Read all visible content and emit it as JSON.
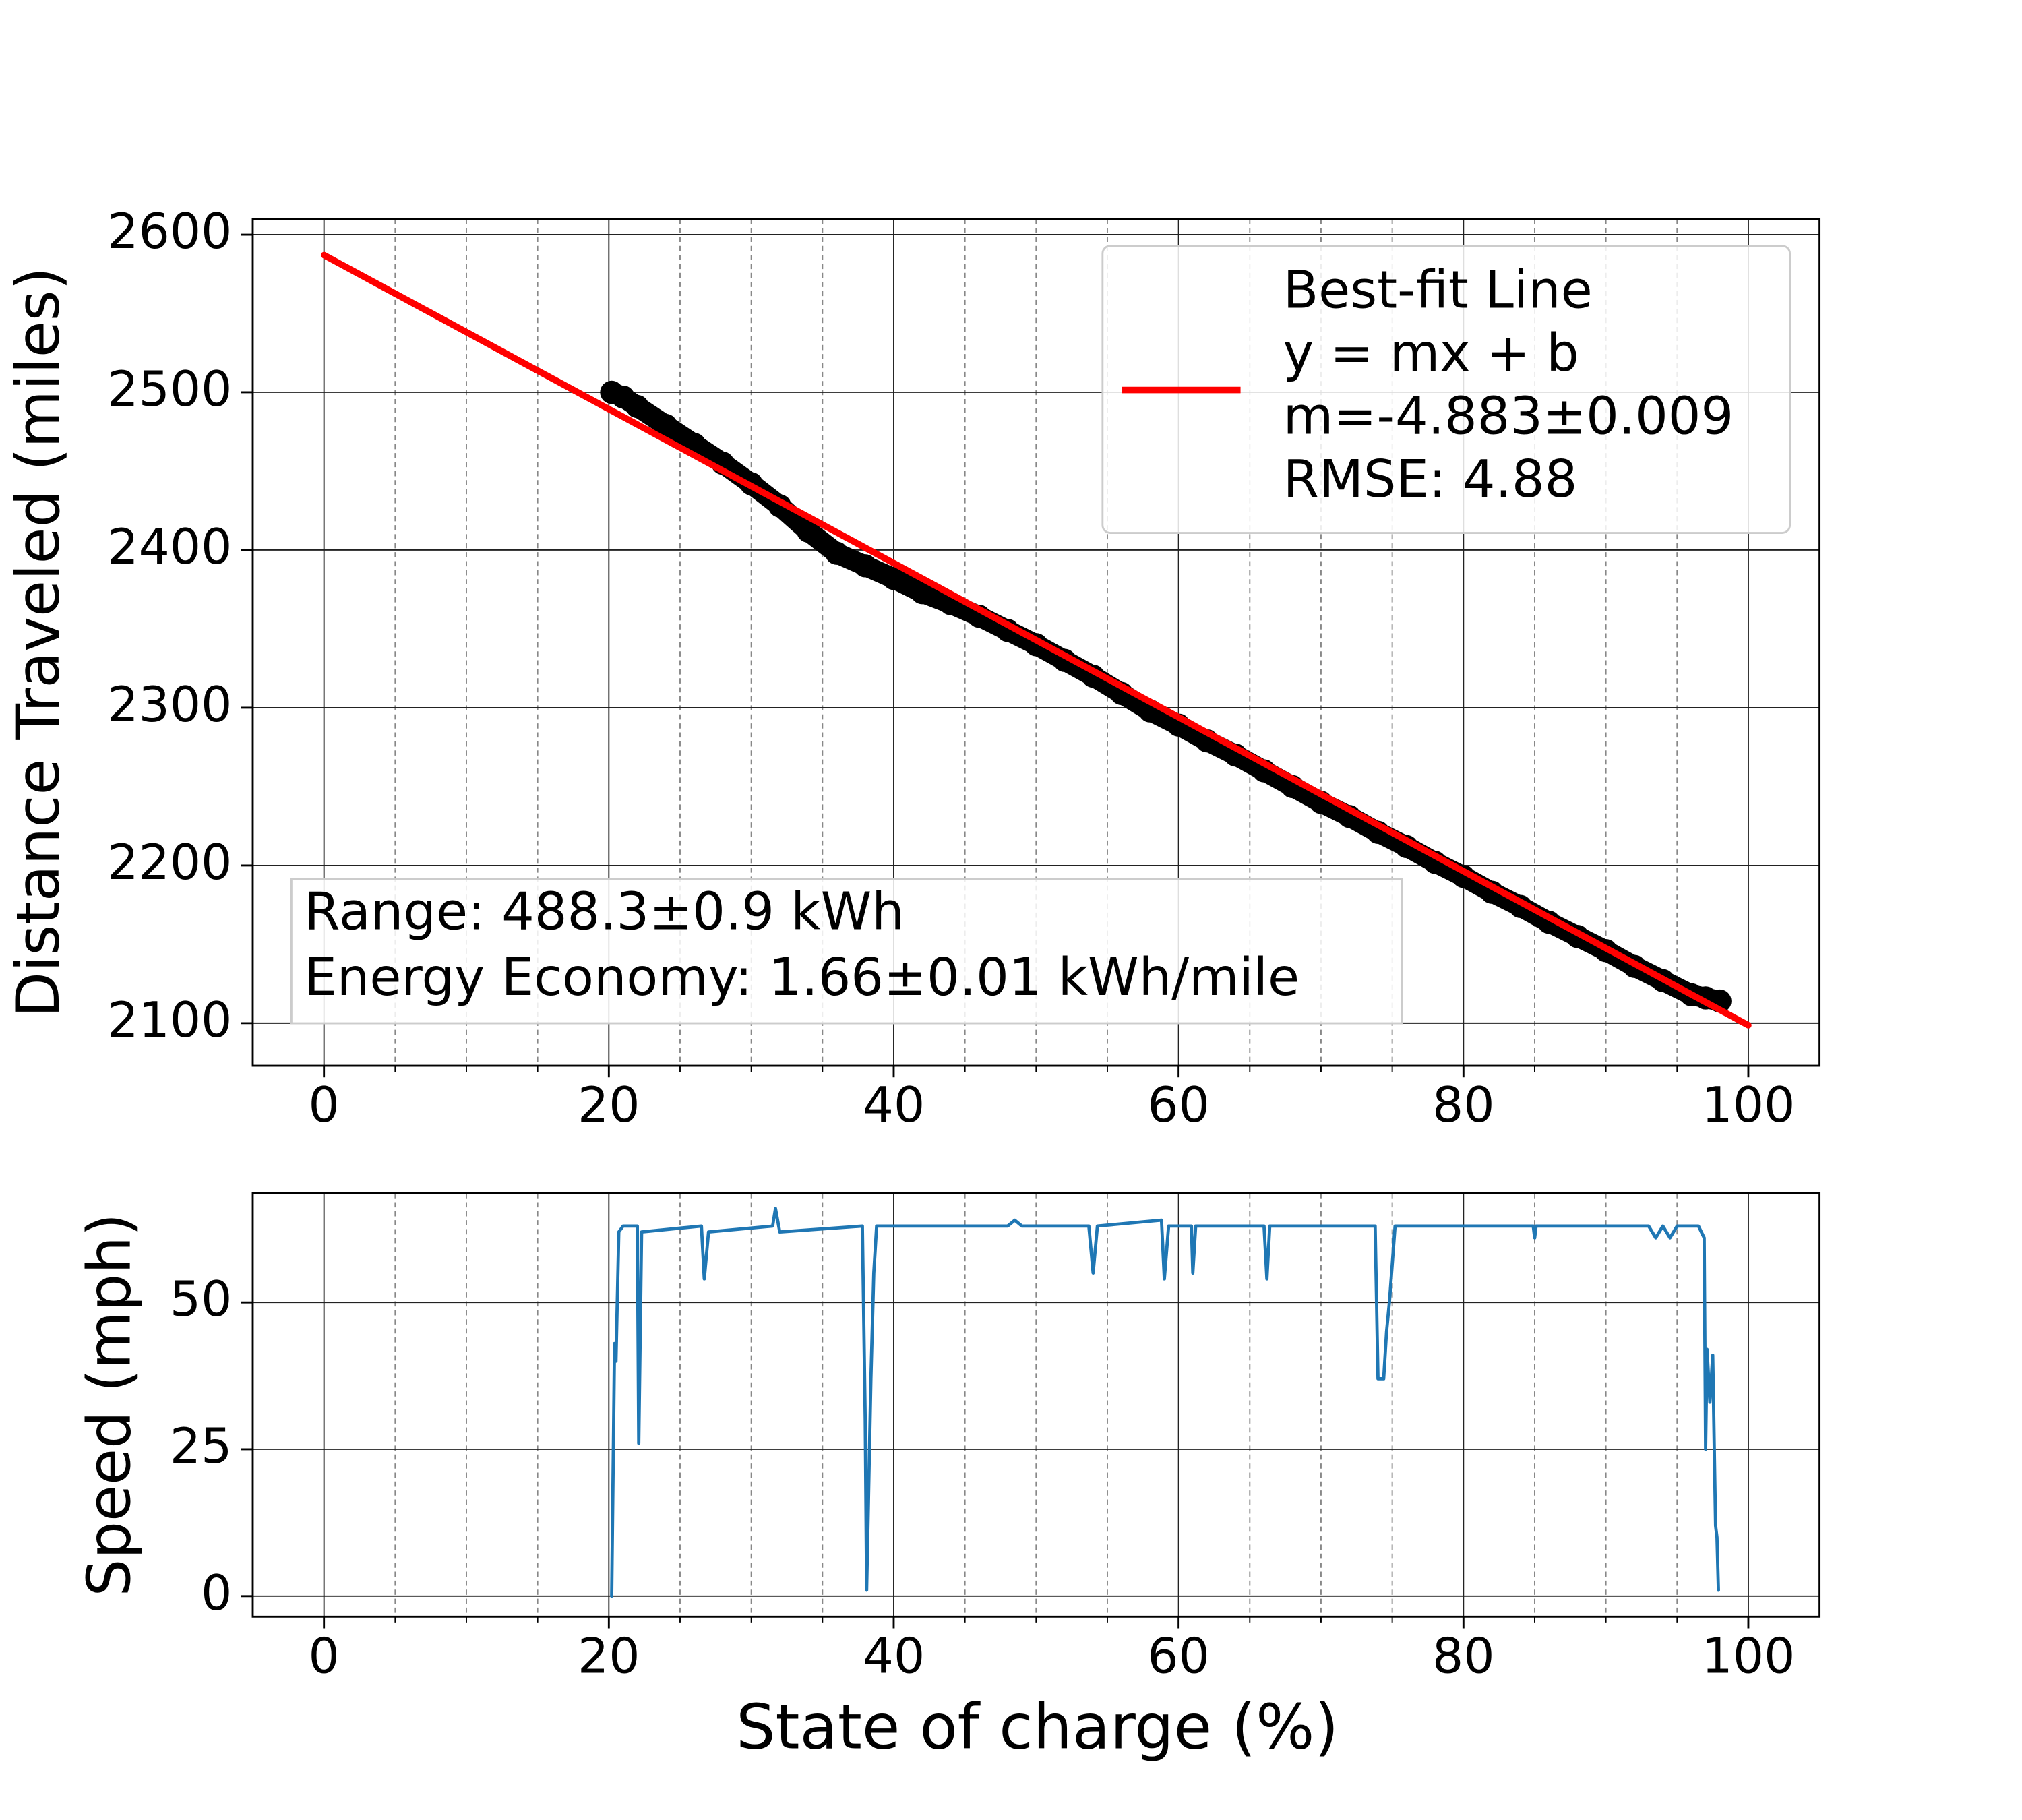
{
  "chart_data": [
    {
      "type": "scatter",
      "ylabel": "Distance Traveled (miles)",
      "xlim": [
        -5,
        105
      ],
      "xticks": [
        0,
        20,
        40,
        60,
        80,
        100
      ],
      "xminorticks": [
        5,
        10,
        15,
        25,
        30,
        35,
        45,
        50,
        55,
        65,
        70,
        75,
        85,
        90,
        95
      ],
      "ylim": [
        2073,
        2610
      ],
      "yticks": [
        2100,
        2200,
        2300,
        2400,
        2500,
        2600
      ],
      "grid": true,
      "series": [
        {
          "color": "#000000",
          "marker": "circle",
          "x": [
            20.2,
            21,
            22,
            24,
            26,
            28,
            30,
            32,
            34,
            36,
            38,
            40,
            42,
            44,
            46,
            48,
            50,
            52,
            54,
            56,
            58,
            60,
            62,
            64,
            66,
            68,
            70,
            72,
            74,
            76,
            78,
            80,
            82,
            84,
            86,
            88,
            90,
            92,
            94,
            96,
            97,
            98
          ],
          "values": [
            2500,
            2497,
            2491,
            2479,
            2467,
            2455,
            2442,
            2428,
            2412,
            2398,
            2390,
            2382,
            2373,
            2366,
            2358,
            2349,
            2340,
            2330,
            2320,
            2309,
            2298,
            2289,
            2279,
            2270,
            2260,
            2250,
            2240,
            2231,
            2221,
            2212,
            2202,
            2193,
            2183,
            2174,
            2164,
            2155,
            2146,
            2136,
            2127,
            2118,
            2116,
            2114
          ]
        },
        {
          "name": "Best-fit Line",
          "legend_lines": [
            "y = mx + b",
            "m=-4.883±0.009",
            "RMSE: 4.88"
          ],
          "color": "#ff0000",
          "x": [
            0,
            100
          ],
          "values": [
            2587,
            2098.7
          ]
        }
      ],
      "legend": "upper right",
      "annotation": [
        "Range: 488.3±0.9 kWh",
        "Energy Economy: 1.66±0.01 kWh/mile"
      ]
    },
    {
      "type": "line",
      "xlabel": "State of charge (%)",
      "ylabel": "Speed (mph)",
      "xlim": [
        -5,
        105
      ],
      "xticks": [
        0,
        20,
        40,
        60,
        80,
        100
      ],
      "xminorticks": [
        5,
        10,
        15,
        25,
        30,
        35,
        45,
        50,
        55,
        65,
        70,
        75,
        85,
        90,
        95
      ],
      "ylim": [
        -3.5,
        68.6
      ],
      "yticks": [
        0,
        25,
        50
      ],
      "grid": true,
      "series": [
        {
          "color": "#1f77b4",
          "x": [
            20.2,
            20.4,
            20.5,
            20.7,
            21,
            22,
            22.1,
            22.3,
            26.5,
            26.7,
            27,
            31.5,
            31.7,
            32,
            37.8,
            38,
            38.1,
            38.4,
            38.6,
            38.8,
            48,
            48.5,
            49,
            53.7,
            54,
            54.3,
            58.8,
            59,
            59.3,
            60.9,
            61,
            61.2,
            66,
            66.2,
            66.4,
            73.8,
            74,
            74.4,
            74.6,
            74.8,
            75.2,
            84.9,
            85,
            85.1,
            93,
            93.5,
            94,
            94.5,
            95,
            96.5,
            96.9,
            97,
            97.1,
            97.3,
            97.5,
            97.7,
            97.8,
            97.9
          ],
          "values": [
            0,
            43,
            40,
            62,
            63,
            63,
            26,
            62,
            63,
            54,
            62,
            63,
            66,
            62,
            63,
            30,
            1,
            37,
            55,
            63,
            63,
            64,
            63,
            63,
            55,
            63,
            64,
            54,
            63,
            63,
            55,
            63,
            63,
            54,
            63,
            63,
            37,
            37,
            45,
            50,
            63,
            63,
            61,
            63,
            63,
            61,
            63,
            61,
            63,
            63,
            61,
            25,
            42,
            33,
            41,
            12,
            10,
            1
          ]
        }
      ]
    }
  ]
}
